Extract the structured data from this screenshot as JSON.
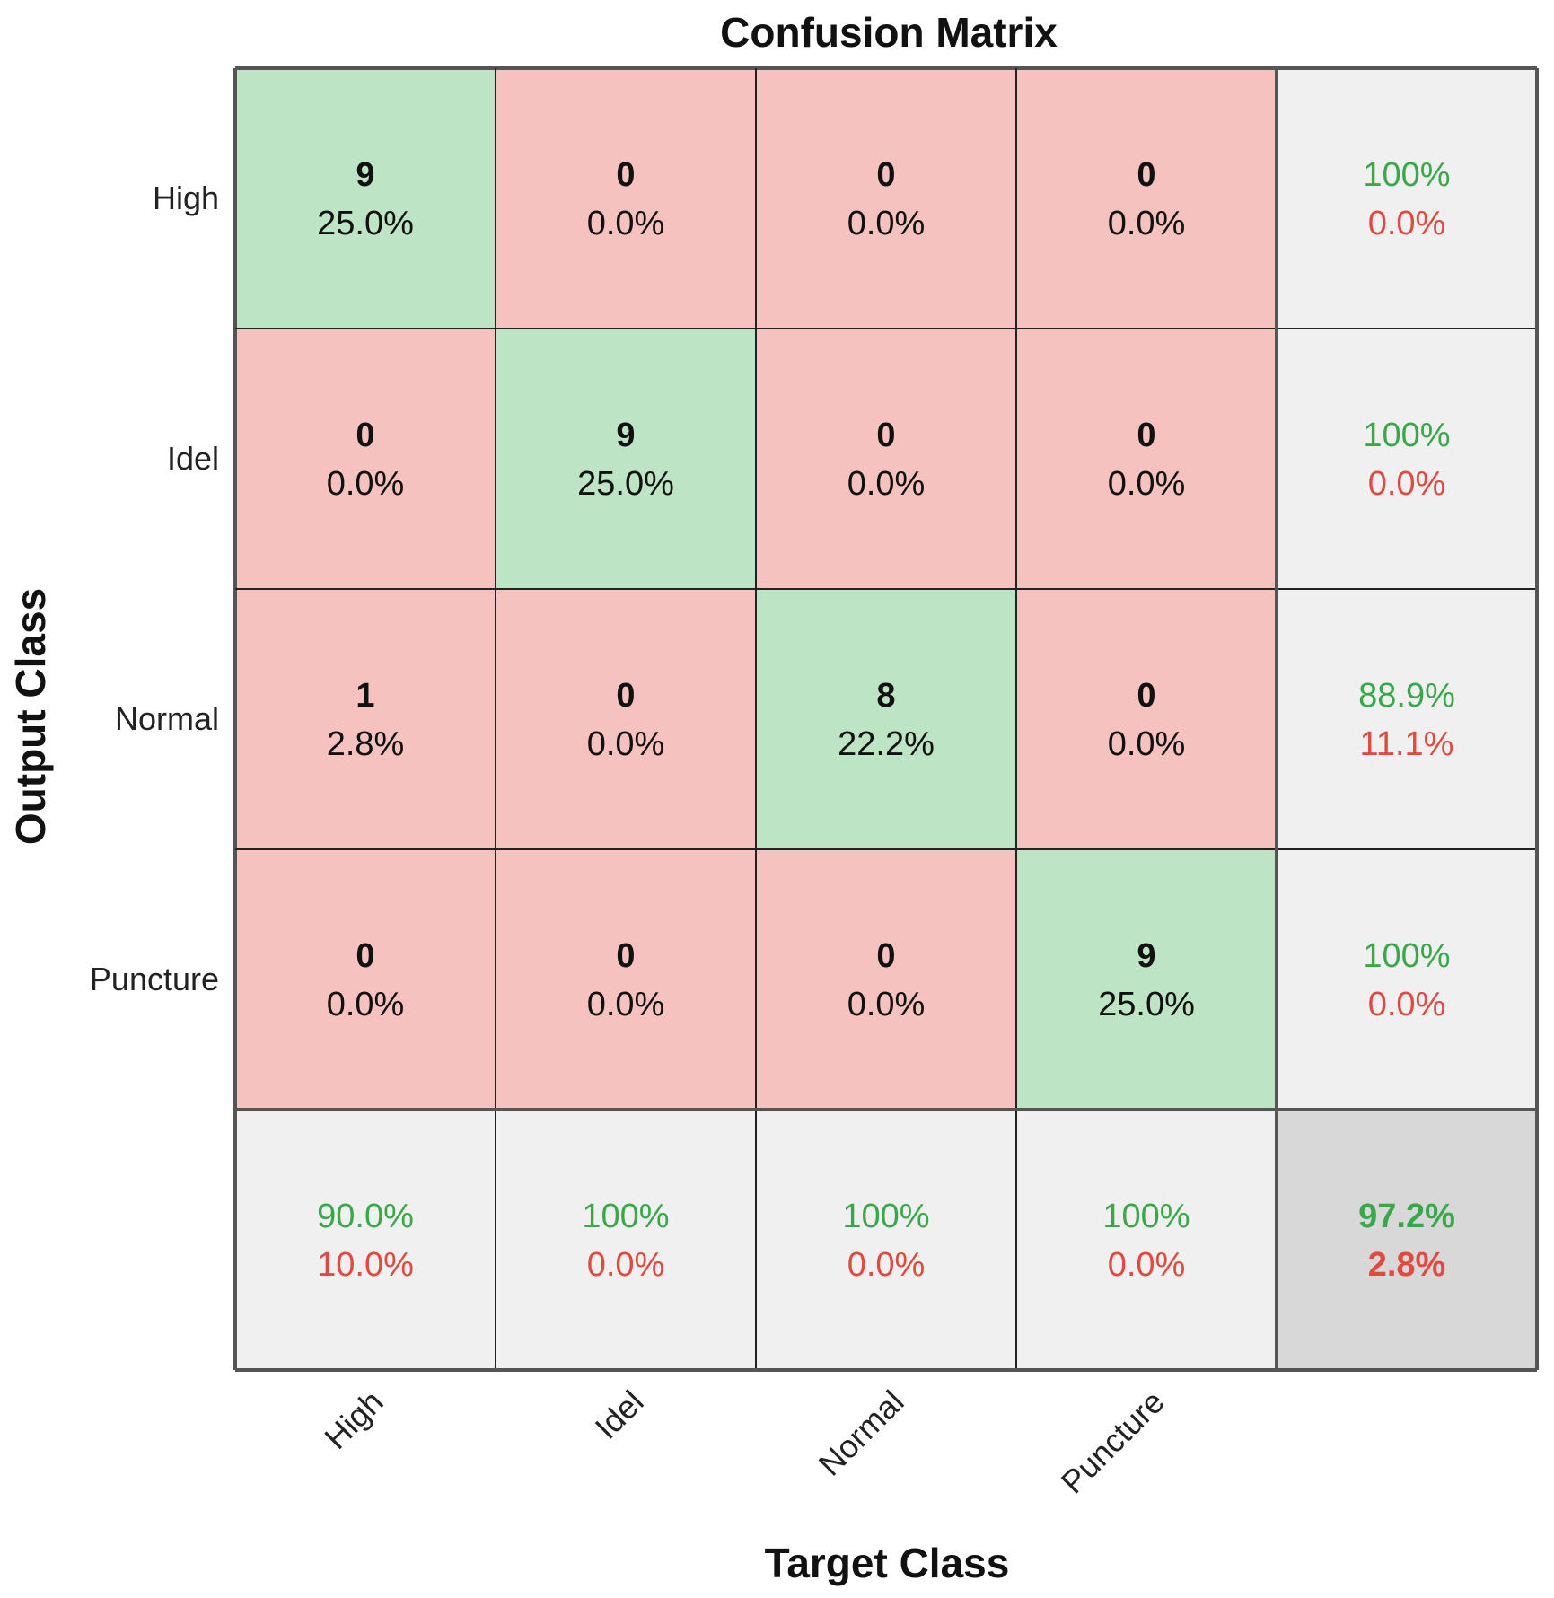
{
  "chart_data": {
    "type": "heatmap",
    "title": "Confusion Matrix",
    "xlabel": "Target Class",
    "ylabel": "Output Class",
    "classes": [
      "High",
      "Idel",
      "Normal",
      "Puncture"
    ],
    "matrix": [
      {
        "counts": [
          "9",
          "0",
          "0",
          "0"
        ],
        "percents": [
          "25.0%",
          "0.0%",
          "0.0%",
          "0.0%"
        ]
      },
      {
        "counts": [
          "0",
          "9",
          "0",
          "0"
        ],
        "percents": [
          "0.0%",
          "25.0%",
          "0.0%",
          "0.0%"
        ]
      },
      {
        "counts": [
          "1",
          "0",
          "8",
          "0"
        ],
        "percents": [
          "2.8%",
          "0.0%",
          "22.2%",
          "0.0%"
        ]
      },
      {
        "counts": [
          "0",
          "0",
          "0",
          "9"
        ],
        "percents": [
          "0.0%",
          "0.0%",
          "0.0%",
          "25.0%"
        ]
      }
    ],
    "row_summary": [
      {
        "correct": "100%",
        "wrong": "0.0%"
      },
      {
        "correct": "100%",
        "wrong": "0.0%"
      },
      {
        "correct": "88.9%",
        "wrong": "11.1%"
      },
      {
        "correct": "100%",
        "wrong": "0.0%"
      }
    ],
    "col_summary": [
      {
        "correct": "90.0%",
        "wrong": "10.0%"
      },
      {
        "correct": "100%",
        "wrong": "0.0%"
      },
      {
        "correct": "100%",
        "wrong": "0.0%"
      },
      {
        "correct": "100%",
        "wrong": "0.0%"
      }
    ],
    "overall": {
      "correct": "97.2%",
      "wrong": "2.8%"
    }
  },
  "colors": {
    "diagonal": "#bde5c5",
    "off_diagonal": "#f6c2bf",
    "summary": "#f0f0f0",
    "overall": "#d8d8d8",
    "good_text": "#3aa84a",
    "bad_text": "#e04a40",
    "grid": "#222222"
  }
}
